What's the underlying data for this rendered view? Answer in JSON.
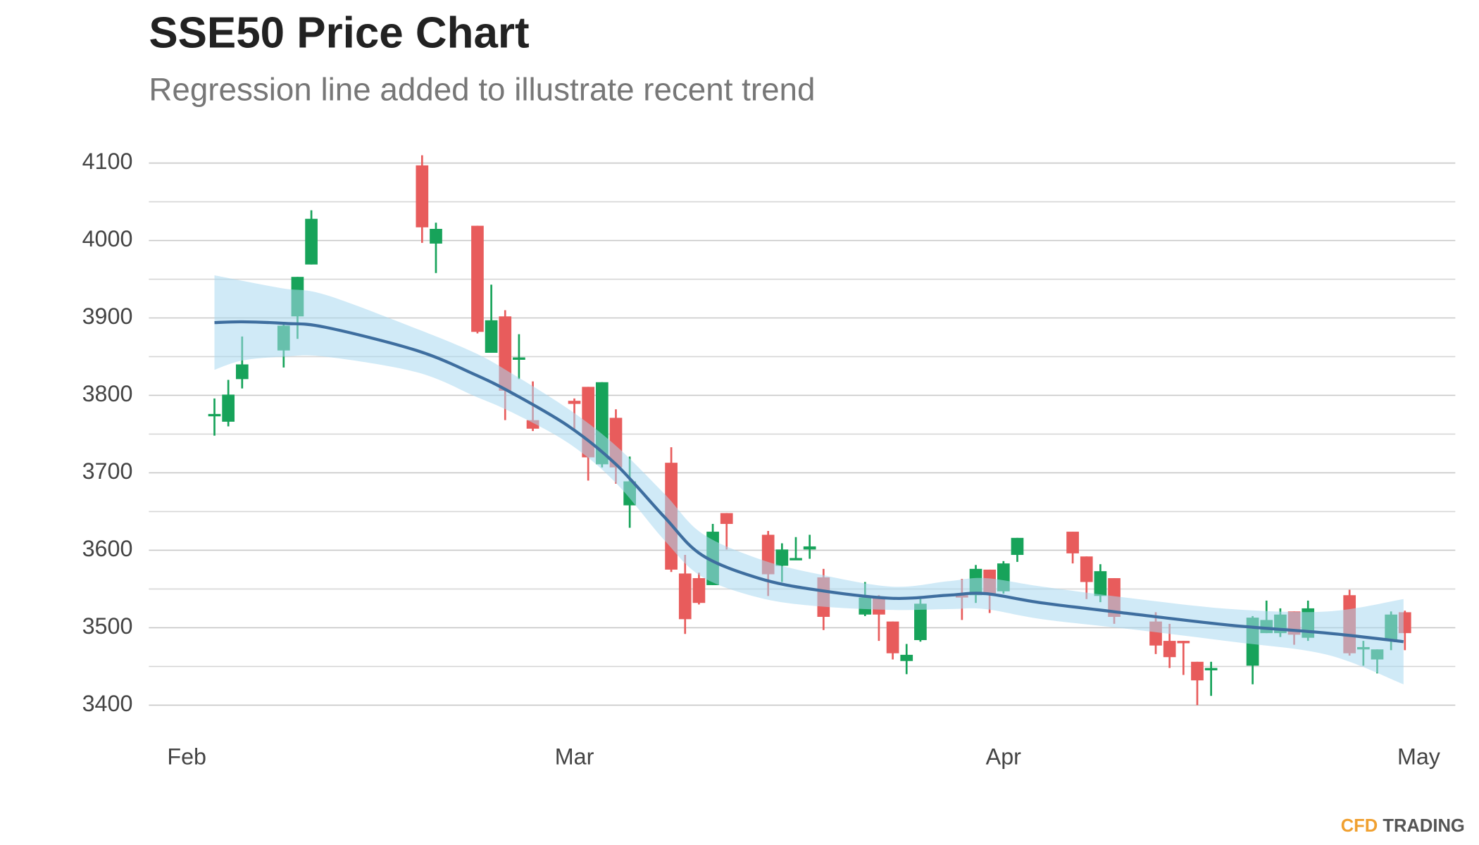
{
  "chart_data": {
    "type": "candlestick",
    "title": "SSE50 Price Chart",
    "subtitle": "Regression line added to illustrate recent trend",
    "watermark": {
      "brand": "CFD",
      "text": "TRADING"
    },
    "up_color": "#17a35a",
    "down_color": "#e85c5c",
    "band_color": "#a9d8f0",
    "line_color": "#3e6e9f",
    "grid": true,
    "xlim": [
      -2.74,
      91.64
    ],
    "xticks": [
      {
        "value": 0,
        "label": "Feb"
      },
      {
        "value": 28,
        "label": "Mar"
      },
      {
        "value": 59,
        "label": "Apr"
      },
      {
        "value": 89,
        "label": "May"
      }
    ],
    "ylim": [
      3380,
      4127
    ],
    "yticks": [
      3400,
      3500,
      3600,
      3700,
      3800,
      3900,
      4000,
      4100
    ],
    "minor_yticks": [
      3450,
      3550,
      3650,
      3750,
      3850,
      3950,
      4050
    ],
    "x": [
      2,
      3,
      4,
      7,
      8,
      9,
      17,
      18,
      21,
      22,
      23,
      24,
      25,
      28,
      29,
      30,
      31,
      32,
      35,
      36,
      37,
      38,
      39,
      42,
      43,
      44,
      45,
      46,
      49,
      50,
      51,
      52,
      53,
      56,
      57,
      58,
      59,
      60,
      64,
      65,
      66,
      67,
      70,
      71,
      72,
      73,
      74,
      77,
      78,
      79,
      80,
      81,
      84,
      85,
      86,
      87,
      88
    ],
    "open": [
      3774,
      3766,
      3821,
      3858,
      3902,
      3969,
      4097,
      3996,
      4019,
      3855,
      3902,
      3846,
      3768,
      3793,
      3811,
      3711,
      3771,
      3658,
      3713,
      3570,
      3564,
      3555,
      3648,
      3620,
      3580,
      3589,
      3601,
      3565,
      3517,
      3539,
      3508,
      3457,
      3484,
      3542,
      3542,
      3575,
      3547,
      3594,
      3624,
      3592,
      3541,
      3564,
      3508,
      3483,
      3483,
      3456,
      3447,
      3451,
      3493,
      3493,
      3521,
      3487,
      3542,
      3474,
      3459,
      3483,
      3520
    ],
    "high": [
      3796,
      3820,
      3876,
      3894,
      3953,
      4039,
      4110,
      4023,
      4019,
      3943,
      3910,
      3879,
      3818,
      3796,
      3811,
      3817,
      3782,
      3721,
      3733,
      3594,
      3571,
      3634,
      3648,
      3625,
      3609,
      3617,
      3620,
      3576,
      3559,
      3542,
      3508,
      3479,
      3537,
      3563,
      3581,
      3575,
      3586,
      3616,
      3624,
      3592,
      3582,
      3564,
      3520,
      3505,
      3483,
      3456,
      3456,
      3515,
      3535,
      3525,
      3521,
      3535,
      3549,
      3483,
      3472,
      3521,
      3522
    ],
    "low": [
      3748,
      3760,
      3809,
      3836,
      3873,
      3969,
      3997,
      3958,
      3880,
      3855,
      3768,
      3821,
      3754,
      3754,
      3690,
      3707,
      3686,
      3629,
      3572,
      3492,
      3530,
      3555,
      3601,
      3541,
      3559,
      3588,
      3589,
      3497,
      3515,
      3483,
      3459,
      3440,
      3482,
      3510,
      3532,
      3519,
      3544,
      3585,
      3583,
      3537,
      3533,
      3505,
      3466,
      3448,
      3439,
      3400,
      3412,
      3427,
      3493,
      3488,
      3478,
      3483,
      3464,
      3451,
      3441,
      3471,
      3471
    ],
    "close": [
      3776,
      3801,
      3840,
      3890,
      3953,
      4028,
      4017,
      4015,
      3882,
      3897,
      3806,
      3849,
      3757,
      3789,
      3720,
      3817,
      3707,
      3689,
      3575,
      3511,
      3532,
      3624,
      3634,
      3569,
      3601,
      3590,
      3605,
      3514,
      3539,
      3517,
      3467,
      3465,
      3531,
      3539,
      3576,
      3544,
      3583,
      3616,
      3596,
      3559,
      3573,
      3514,
      3477,
      3462,
      3481,
      3432,
      3448,
      3513,
      3510,
      3517,
      3491,
      3525,
      3467,
      3475,
      3472,
      3517,
      3493
    ],
    "regression": {
      "x": [
        2,
        4,
        7,
        10,
        16.6,
        20.8,
        23.5,
        27.6,
        31,
        34.5,
        37.2,
        41.3,
        45.4,
        50.9,
        55,
        57.7,
        61.8,
        68.7,
        75.5,
        82.4,
        87.9
      ],
      "values": [
        3894,
        3895,
        3893,
        3888,
        3858,
        3827,
        3803,
        3760,
        3711,
        3643,
        3594,
        3564,
        3549,
        3538,
        3542,
        3544,
        3532,
        3517,
        3503,
        3493,
        3482
      ],
      "upper": [
        3955,
        3948,
        3938,
        3930,
        3886,
        3855,
        3828,
        3782,
        3735,
        3673,
        3622,
        3589,
        3570,
        3553,
        3560,
        3564,
        3553,
        3537,
        3524,
        3521,
        3537
      ],
      "lower": [
        3833,
        3845,
        3850,
        3850,
        3830,
        3799,
        3778,
        3738,
        3687,
        3613,
        3566,
        3539,
        3528,
        3523,
        3524,
        3524,
        3511,
        3497,
        3482,
        3465,
        3427
      ]
    }
  }
}
